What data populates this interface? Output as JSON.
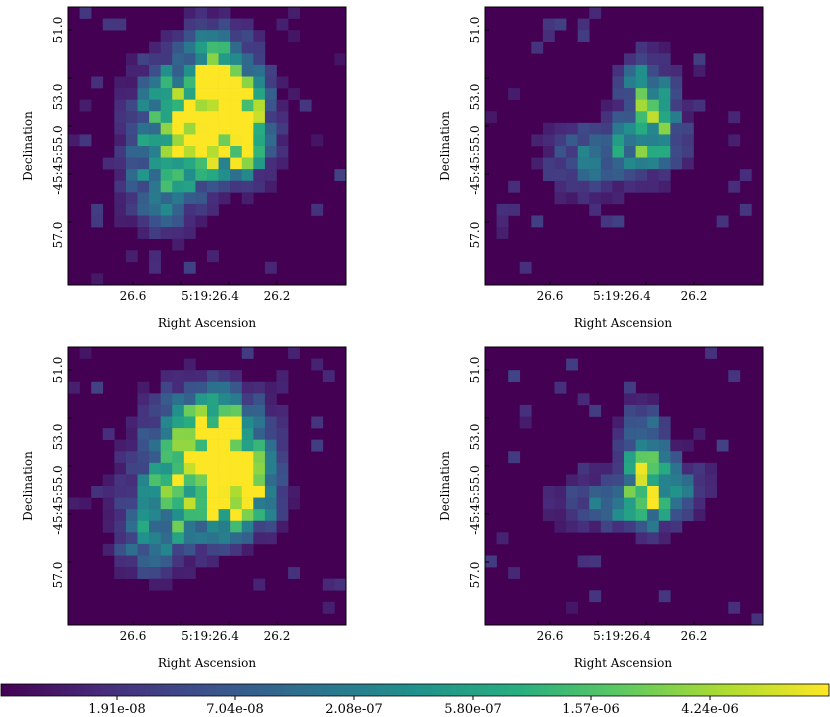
{
  "chart_data": {
    "type": "heatmap",
    "colormap": [
      "#440154",
      "#472d7b",
      "#3b528b",
      "#2c728e",
      "#21918c",
      "#28ae80",
      "#5ec962",
      "#addc30",
      "#fde725"
    ],
    "background_color": "#440154",
    "scale": "log",
    "panels": [
      {
        "xlabel": "Right Ascension",
        "ylabel": "Declination",
        "xticks": [
          "26.6",
          "5:19:26.4",
          "26.2"
        ],
        "yticks": [
          "51.0",
          "53.0",
          "-45:45:55.0",
          "57.0"
        ],
        "grid_size": [
          24,
          24
        ],
        "blobs": [
          {
            "cx": 13.5,
            "cy": 8.5,
            "sx": 1.8,
            "sy": 2.6,
            "v": 1.0
          },
          {
            "cx": 10.5,
            "cy": 8.0,
            "sx": 3.0,
            "sy": 3.2,
            "v": 0.55
          },
          {
            "cx": 9.0,
            "cy": 11.0,
            "sx": 2.5,
            "sy": 3.0,
            "v": 0.5
          },
          {
            "cx": 12.5,
            "cy": 5.0,
            "sx": 2.0,
            "sy": 3.0,
            "v": 0.42
          },
          {
            "cx": 7.5,
            "cy": 15.5,
            "sx": 2.2,
            "sy": 2.5,
            "v": 0.32
          },
          {
            "cx": 14.5,
            "cy": 11.5,
            "sx": 2.0,
            "sy": 2.0,
            "v": 0.45
          }
        ],
        "noise_density": 0.08,
        "seed": 11
      },
      {
        "xlabel": "Right Ascension",
        "ylabel": "Declination",
        "xticks": [
          "26.6",
          "5:19:26.4",
          "26.2"
        ],
        "yticks": [
          "51.0",
          "53.0",
          "-45:45:55.0",
          "57.0"
        ],
        "grid_size": [
          24,
          24
        ],
        "blobs": [
          {
            "cx": 14.0,
            "cy": 9.5,
            "sx": 1.6,
            "sy": 2.6,
            "v": 0.62
          },
          {
            "cx": 10.5,
            "cy": 11.5,
            "sx": 3.5,
            "sy": 1.4,
            "v": 0.36
          },
          {
            "cx": 13.0,
            "cy": 6.0,
            "sx": 1.4,
            "sy": 2.0,
            "v": 0.3
          },
          {
            "cx": 8.0,
            "cy": 14.0,
            "sx": 2.5,
            "sy": 1.6,
            "v": 0.22
          }
        ],
        "noise_density": 0.045,
        "seed": 23
      },
      {
        "xlabel": "Right Ascension",
        "ylabel": "Declination",
        "xticks": [
          "26.6",
          "5:19:26.4",
          "26.2"
        ],
        "yticks": [
          "51.0",
          "53.0",
          "-45:45:55.0",
          "57.0"
        ],
        "grid_size": [
          24,
          24
        ],
        "blobs": [
          {
            "cx": 13.5,
            "cy": 10.5,
            "sx": 1.8,
            "sy": 2.8,
            "v": 1.0
          },
          {
            "cx": 11.0,
            "cy": 8.5,
            "sx": 3.2,
            "sy": 3.2,
            "v": 0.55
          },
          {
            "cx": 9.0,
            "cy": 13.0,
            "sx": 3.0,
            "sy": 2.6,
            "v": 0.5
          },
          {
            "cx": 12.0,
            "cy": 6.0,
            "sx": 3.0,
            "sy": 2.2,
            "v": 0.38
          },
          {
            "cx": 6.5,
            "cy": 16.5,
            "sx": 2.0,
            "sy": 2.0,
            "v": 0.3
          },
          {
            "cx": 15.0,
            "cy": 12.5,
            "sx": 2.0,
            "sy": 2.0,
            "v": 0.45
          }
        ],
        "noise_density": 0.08,
        "seed": 37
      },
      {
        "xlabel": "Right Ascension",
        "ylabel": "Declination",
        "xticks": [
          "26.6",
          "5:19:26.4",
          "26.2"
        ],
        "yticks": [
          "51.0",
          "53.0",
          "-45:45:55.0",
          "57.0"
        ],
        "grid_size": [
          24,
          24
        ],
        "blobs": [
          {
            "cx": 13.5,
            "cy": 11.0,
            "sx": 1.4,
            "sy": 2.6,
            "v": 0.68
          },
          {
            "cx": 10.5,
            "cy": 13.0,
            "sx": 3.5,
            "sy": 1.4,
            "v": 0.36
          },
          {
            "cx": 13.0,
            "cy": 7.0,
            "sx": 1.2,
            "sy": 2.0,
            "v": 0.3
          },
          {
            "cx": 16.0,
            "cy": 11.5,
            "sx": 2.2,
            "sy": 1.8,
            "v": 0.25
          }
        ],
        "noise_density": 0.045,
        "seed": 51
      }
    ],
    "colorbar": {
      "tick_labels": [
        "1.91e-08",
        "7.04e-08",
        "2.08e-07",
        "5.80e-07",
        "1.57e-06",
        "4.24e-06"
      ]
    }
  }
}
